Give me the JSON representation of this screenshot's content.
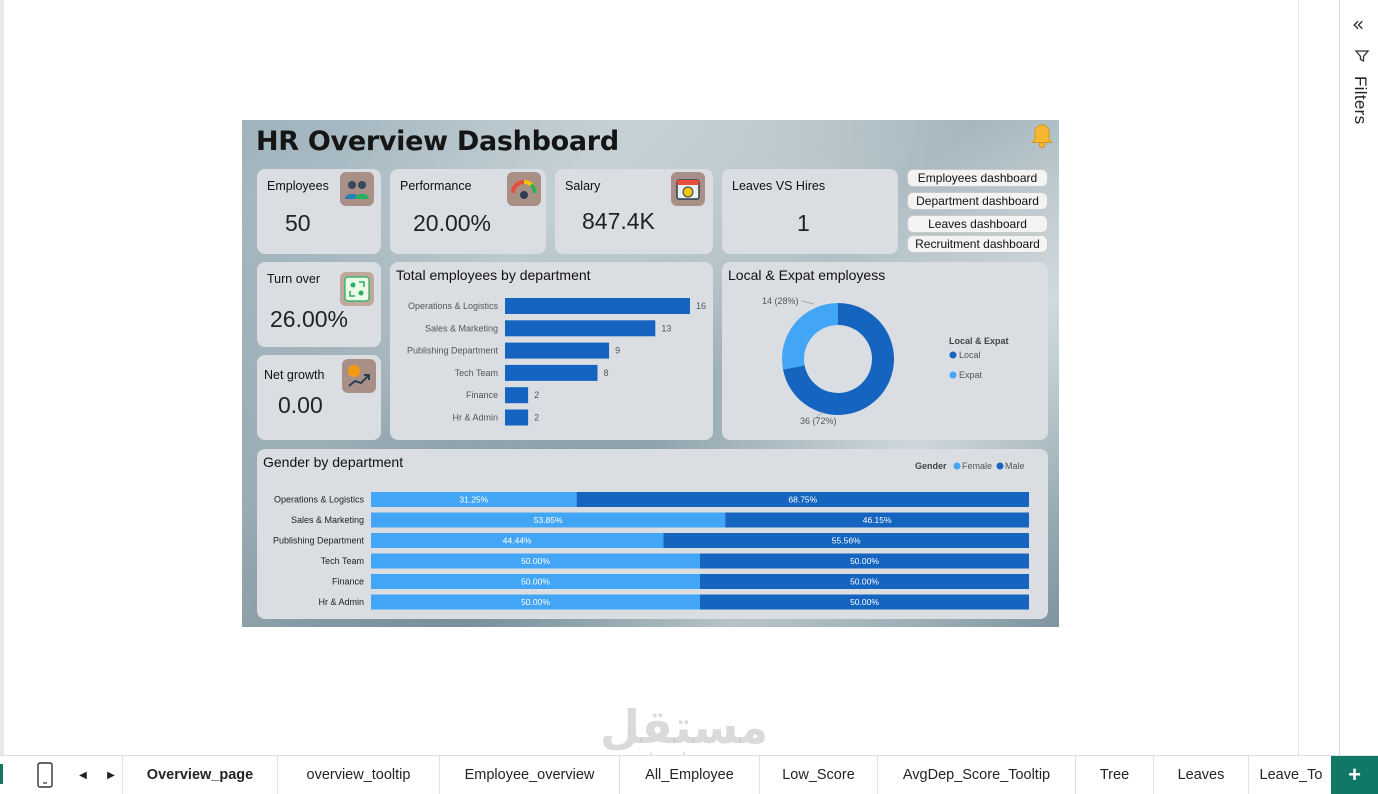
{
  "filters": {
    "label": "Filters",
    "collapse_icon": "double-chevron-right-icon",
    "filter_icon": "filter-icon"
  },
  "report": {
    "title": "HR Overview Dashboard",
    "kpis": {
      "employees": {
        "label": "Employees",
        "value": "50"
      },
      "performance": {
        "label": "Performance",
        "value": "20.00%"
      },
      "salary": {
        "label": "Salary",
        "value": "847.4K"
      },
      "leaves_vs_hires": {
        "label": "Leaves VS Hires",
        "value": "1"
      },
      "turnover": {
        "label": "Turn over",
        "value": "26.00%"
      },
      "net_growth": {
        "label": "Net growth",
        "value": "0.00"
      }
    },
    "nav_buttons": [
      "Employees dashboard",
      "Department dashboard",
      "Leaves dashboard",
      "Recruitment dashboard"
    ],
    "dept_chart_title": "Total employees by department",
    "donut_title": "Local & Expat employess",
    "gender_title": "Gender by department",
    "colors": {
      "dark_blue": "#1565c0",
      "light_blue": "#42a5f5",
      "card": "#dadde2"
    }
  },
  "chart_data": [
    {
      "type": "bar",
      "orientation": "horizontal",
      "title": "Total employees by department",
      "categories": [
        "Operations & Logistics",
        "Sales & Marketing",
        "Publishing Department",
        "Tech Team",
        "Finance",
        "Hr & Admin"
      ],
      "values": [
        16,
        13,
        9,
        8,
        2,
        2
      ],
      "data_labels": [
        "16",
        "13",
        "9",
        "8",
        "2",
        "2"
      ]
    },
    {
      "type": "pie",
      "variant": "donut",
      "title": "Local & Expat employess",
      "legend_title": "Local & Expat",
      "legend_position": "right",
      "labels": [
        "Local",
        "Expat"
      ],
      "values": [
        36,
        14
      ],
      "data_labels": [
        "36 (72%)",
        "14 (28%)"
      ]
    },
    {
      "type": "bar",
      "orientation": "horizontal",
      "stacked": "100%",
      "title": "Gender by department",
      "legend_title": "Gender",
      "legend_position": "top-right",
      "categories": [
        "Operations & Logistics",
        "Sales & Marketing",
        "Publishing Department",
        "Tech Team",
        "Finance",
        "Hr & Admin"
      ],
      "series": [
        {
          "name": "Female",
          "values": [
            31.25,
            53.85,
            44.44,
            50.0,
            50.0,
            50.0
          ],
          "labels": [
            "31.25%",
            "53.85%",
            "44.44%",
            "50.00%",
            "50.00%",
            "50.00%"
          ]
        },
        {
          "name": "Male",
          "values": [
            68.75,
            46.15,
            55.56,
            50.0,
            50.0,
            50.0
          ],
          "labels": [
            "68.75%",
            "46.15%",
            "55.56%",
            "50.00%",
            "50.00%",
            "50.00%"
          ]
        }
      ]
    }
  ],
  "tabs": [
    {
      "label": "Overview_page",
      "active": true
    },
    {
      "label": "overview_tooltip"
    },
    {
      "label": "Employee_overview"
    },
    {
      "label": "All_Employee"
    },
    {
      "label": "Low_Score"
    },
    {
      "label": "AvgDep_Score_Tooltip"
    },
    {
      "label": "Tree"
    },
    {
      "label": "Leaves"
    },
    {
      "label": "Leave_To"
    }
  ],
  "watermark": {
    "text": "مستقل",
    "sub": "mostaql.com"
  }
}
